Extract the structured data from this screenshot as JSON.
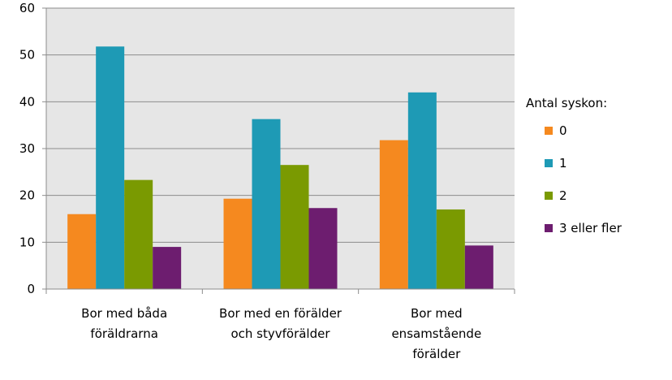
{
  "chart_data": {
    "type": "bar",
    "categories": [
      [
        "Bor med båda",
        "föräldrarna"
      ],
      [
        "Bor med en förälder",
        "och styvförälder"
      ],
      [
        "Bor med",
        "ensamstående",
        "förälder"
      ]
    ],
    "series": [
      {
        "name": "0",
        "color": "#f5891f",
        "values": [
          16,
          19.3,
          31.8
        ]
      },
      {
        "name": "1",
        "color": "#1e9ab5",
        "values": [
          51.8,
          36.3,
          42
        ]
      },
      {
        "name": "2",
        "color": "#7a9a01",
        "values": [
          23.3,
          26.5,
          17
        ]
      },
      {
        "name": "3 eller fler",
        "color": "#6d1d6f",
        "values": [
          9,
          17.3,
          9.3
        ]
      }
    ],
    "y_ticks": [
      "0",
      "10",
      "20",
      "30",
      "40",
      "50",
      "60"
    ],
    "ylim": [
      0,
      60
    ],
    "grid": true,
    "plot_background": "#e6e6e6",
    "legend": {
      "title": "Antal syskon:",
      "position": "right"
    }
  }
}
